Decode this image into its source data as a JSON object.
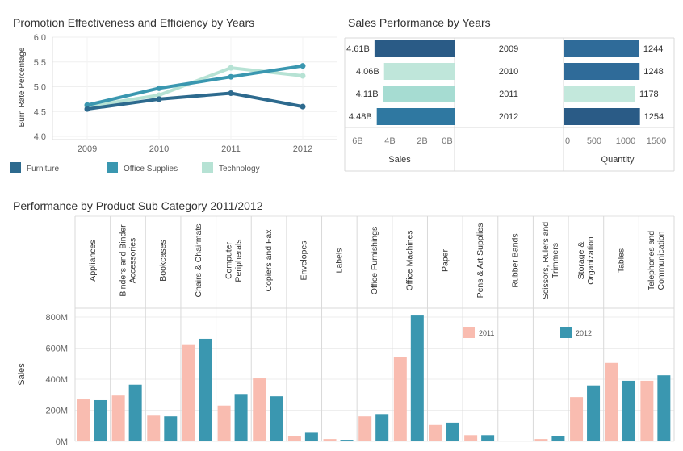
{
  "titles": {
    "promotion": "Promotion Effectiveness and Efficiency by Years",
    "sales": "Sales Performance by Years",
    "subcategory": "Performance by Product Sub Category 2011/2012"
  },
  "chart_data": [
    {
      "type": "line",
      "title": "Promotion Effectiveness and Efficiency by Years",
      "ylabel": "Burn Rate Percentage",
      "xlabel": "",
      "x": [
        "2009",
        "2010",
        "2011",
        "2012"
      ],
      "ylim": [
        4.0,
        6.0
      ],
      "yticks": [
        "4.0",
        "4.5",
        "5.0",
        "5.5",
        "6.0"
      ],
      "grid": true,
      "legend_position": "bottom",
      "series": [
        {
          "name": "Furniture",
          "values": [
            4.55,
            4.75,
            4.87,
            4.6
          ],
          "color": "#2d6a8e"
        },
        {
          "name": "Office Supplies",
          "values": [
            4.63,
            4.97,
            5.2,
            5.42
          ],
          "color": "#3a97b0"
        },
        {
          "name": "Technology",
          "values": [
            4.6,
            4.83,
            5.38,
            5.22
          ],
          "color": "#b6e2d4"
        }
      ]
    },
    {
      "type": "bar",
      "title": "Sales Performance by Years",
      "categories": [
        "2009",
        "2010",
        "2011",
        "2012"
      ],
      "series": [
        {
          "name": "Sales",
          "values": [
            4.61,
            4.06,
            4.11,
            4.48
          ],
          "labels": [
            "4.61B",
            "4.06B",
            "4.11B",
            "4.48B"
          ],
          "axis_ticks": [
            "6B",
            "4B",
            "2B",
            "0B"
          ],
          "xlim": [
            0,
            6.5
          ],
          "colors": [
            "#2a5b86",
            "#bfe6da",
            "#a6dcd2",
            "#2f78a1"
          ]
        },
        {
          "name": "Quantity",
          "values": [
            1244,
            1248,
            1178,
            1254
          ],
          "labels": [
            "1244",
            "1248",
            "1178",
            "1254"
          ],
          "axis_ticks": [
            "0",
            "500",
            "1000",
            "1500"
          ],
          "xlim": [
            0,
            1700
          ],
          "colors": [
            "#2f6b99",
            "#2f6b99",
            "#c3e8dc",
            "#2a5b86"
          ]
        }
      ]
    },
    {
      "type": "bar",
      "title": "Performance by Product Sub Category 2011/2012",
      "ylabel": "Sales",
      "ylim": [
        0,
        800
      ],
      "yticks": [
        "0M",
        "200M",
        "400M",
        "600M",
        "800M"
      ],
      "grid": true,
      "legend_position": "top-right",
      "categories": [
        "Appliances",
        "Binders and Binder Accessories",
        "Bookcases",
        "Chairs & Chairmats",
        "Computer Peripherals",
        "Copiers and Fax",
        "Envelopes",
        "Labels",
        "Office Furnishings",
        "Office Machines",
        "Paper",
        "Pens & Art Supplies",
        "Rubber Bands",
        "Scissors, Rulers and Trimmers",
        "Storage & Organization",
        "Tables",
        "Telephones and Communication"
      ],
      "category_lines": [
        [
          "Appliances"
        ],
        [
          "Binders and Binder",
          "Accessories"
        ],
        [
          "Bookcases"
        ],
        [
          "Chairs & Chairmats"
        ],
        [
          "Computer",
          "Peripherals"
        ],
        [
          "Copiers and Fax"
        ],
        [
          "Envelopes"
        ],
        [
          "Labels"
        ],
        [
          "Office Furnishings"
        ],
        [
          "Office Machines"
        ],
        [
          "Paper"
        ],
        [
          "Pens & Art Supplies"
        ],
        [
          "Rubber Bands"
        ],
        [
          "Scissors, Rulers and",
          "Trimmers"
        ],
        [
          "Storage &",
          "Organization"
        ],
        [
          "Tables"
        ],
        [
          "Telephones and",
          "Communication"
        ]
      ],
      "series": [
        {
          "name": "2011",
          "color": "#f9bcb0",
          "values": [
            270,
            295,
            170,
            625,
            230,
            405,
            35,
            15,
            160,
            545,
            105,
            40,
            5,
            15,
            285,
            505,
            390
          ]
        },
        {
          "name": "2012",
          "color": "#3a97b0",
          "values": [
            265,
            365,
            160,
            660,
            305,
            290,
            55,
            10,
            175,
            810,
            120,
            40,
            5,
            35,
            360,
            390,
            425
          ]
        }
      ]
    }
  ]
}
